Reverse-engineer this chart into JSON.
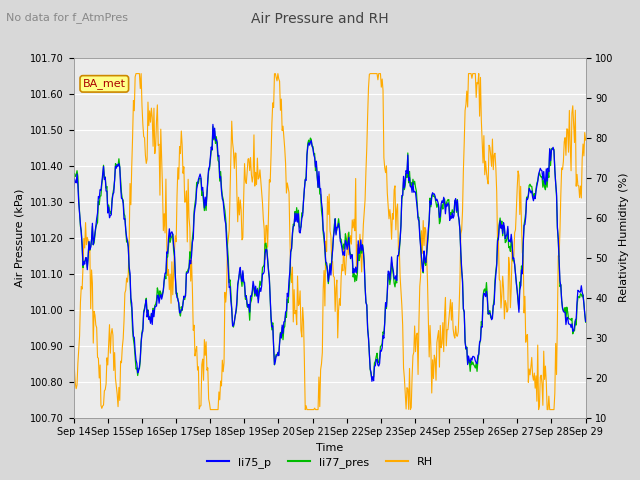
{
  "title": "Air Pressure and RH",
  "subtitle": "No data for f_AtmPres",
  "ylabel_left": "Air Pressure (kPa)",
  "ylabel_right": "Relativity Humidity (%)",
  "xlabel": "Time",
  "ylim_left": [
    100.7,
    101.7
  ],
  "ylim_right": [
    10,
    100
  ],
  "yticks_left": [
    100.7,
    100.8,
    100.9,
    101.0,
    101.1,
    101.2,
    101.3,
    101.4,
    101.5,
    101.6,
    101.7
  ],
  "yticks_right": [
    10,
    20,
    30,
    40,
    50,
    60,
    70,
    80,
    90,
    100
  ],
  "xticklabels": [
    "Sep 14",
    "Sep 15",
    "Sep 16",
    "Sep 17",
    "Sep 18",
    "Sep 19",
    "Sep 20",
    "Sep 21",
    "Sep 22",
    "Sep 23",
    "Sep 24",
    "Sep 25",
    "Sep 26",
    "Sep 27",
    "Sep 28",
    "Sep 29"
  ],
  "legend_labels": [
    "li75_p",
    "li77_pres",
    "RH"
  ],
  "legend_colors": [
    "#0000ff",
    "#00bb00",
    "#ffaa00"
  ],
  "line_colors_li75": "#0000ff",
  "line_colors_li77": "#00bb00",
  "line_colors_rh": "#ffaa00",
  "background_color": "#d8d8d8",
  "plot_bg_color": "#ebebeb",
  "grid_color": "#ffffff",
  "annotation_text": "BA_met",
  "annotation_color": "#aa0000",
  "annotation_bg": "#ffff88",
  "annotation_edge": "#cc8800",
  "n_points": 600,
  "title_fontsize": 10,
  "subtitle_fontsize": 8,
  "axis_label_fontsize": 8,
  "tick_fontsize": 7,
  "legend_fontsize": 8
}
